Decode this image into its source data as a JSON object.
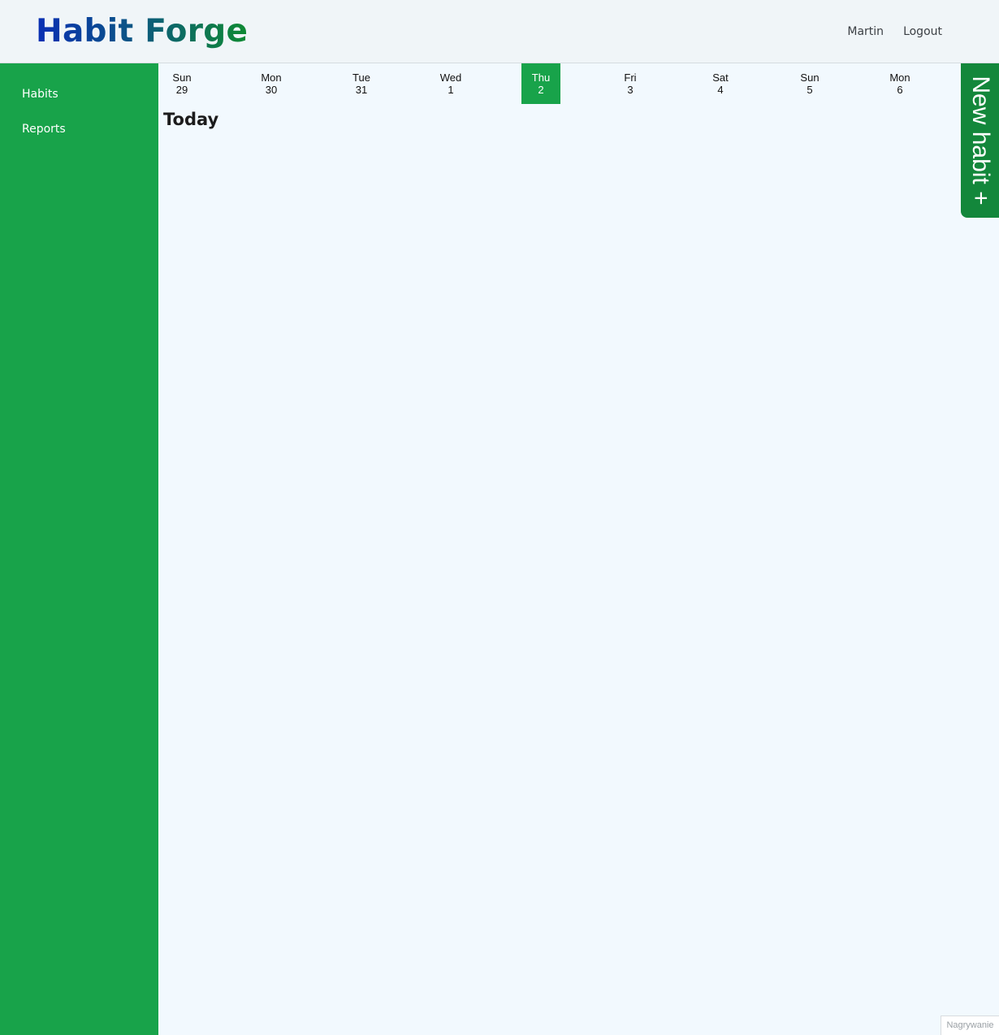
{
  "header": {
    "logo": "Habit Forge",
    "nav": {
      "user": "Martin",
      "logout": "Logout"
    }
  },
  "sidebar": {
    "items": [
      {
        "label": "Habits"
      },
      {
        "label": "Reports"
      }
    ]
  },
  "calendar": {
    "days": [
      {
        "weekday": "Sun",
        "date": "29"
      },
      {
        "weekday": "Mon",
        "date": "30"
      },
      {
        "weekday": "Tue",
        "date": "31"
      },
      {
        "weekday": "Wed",
        "date": "1"
      },
      {
        "weekday": "Thu",
        "date": "2",
        "selected": true
      },
      {
        "weekday": "Fri",
        "date": "3"
      },
      {
        "weekday": "Sat",
        "date": "4"
      },
      {
        "weekday": "Sun",
        "date": "5"
      },
      {
        "weekday": "Mon",
        "date": "6"
      }
    ]
  },
  "main": {
    "heading": "Today"
  },
  "new_habit": {
    "label": "New habit +"
  },
  "recording_badge": {
    "label": "Nagrywanie"
  },
  "colors": {
    "sidebar": "#18a34a",
    "selected_day": "#18a34a",
    "new_habit_tab": "#13873b",
    "background": "#f2f9fe",
    "header": "#f0f5f8"
  }
}
